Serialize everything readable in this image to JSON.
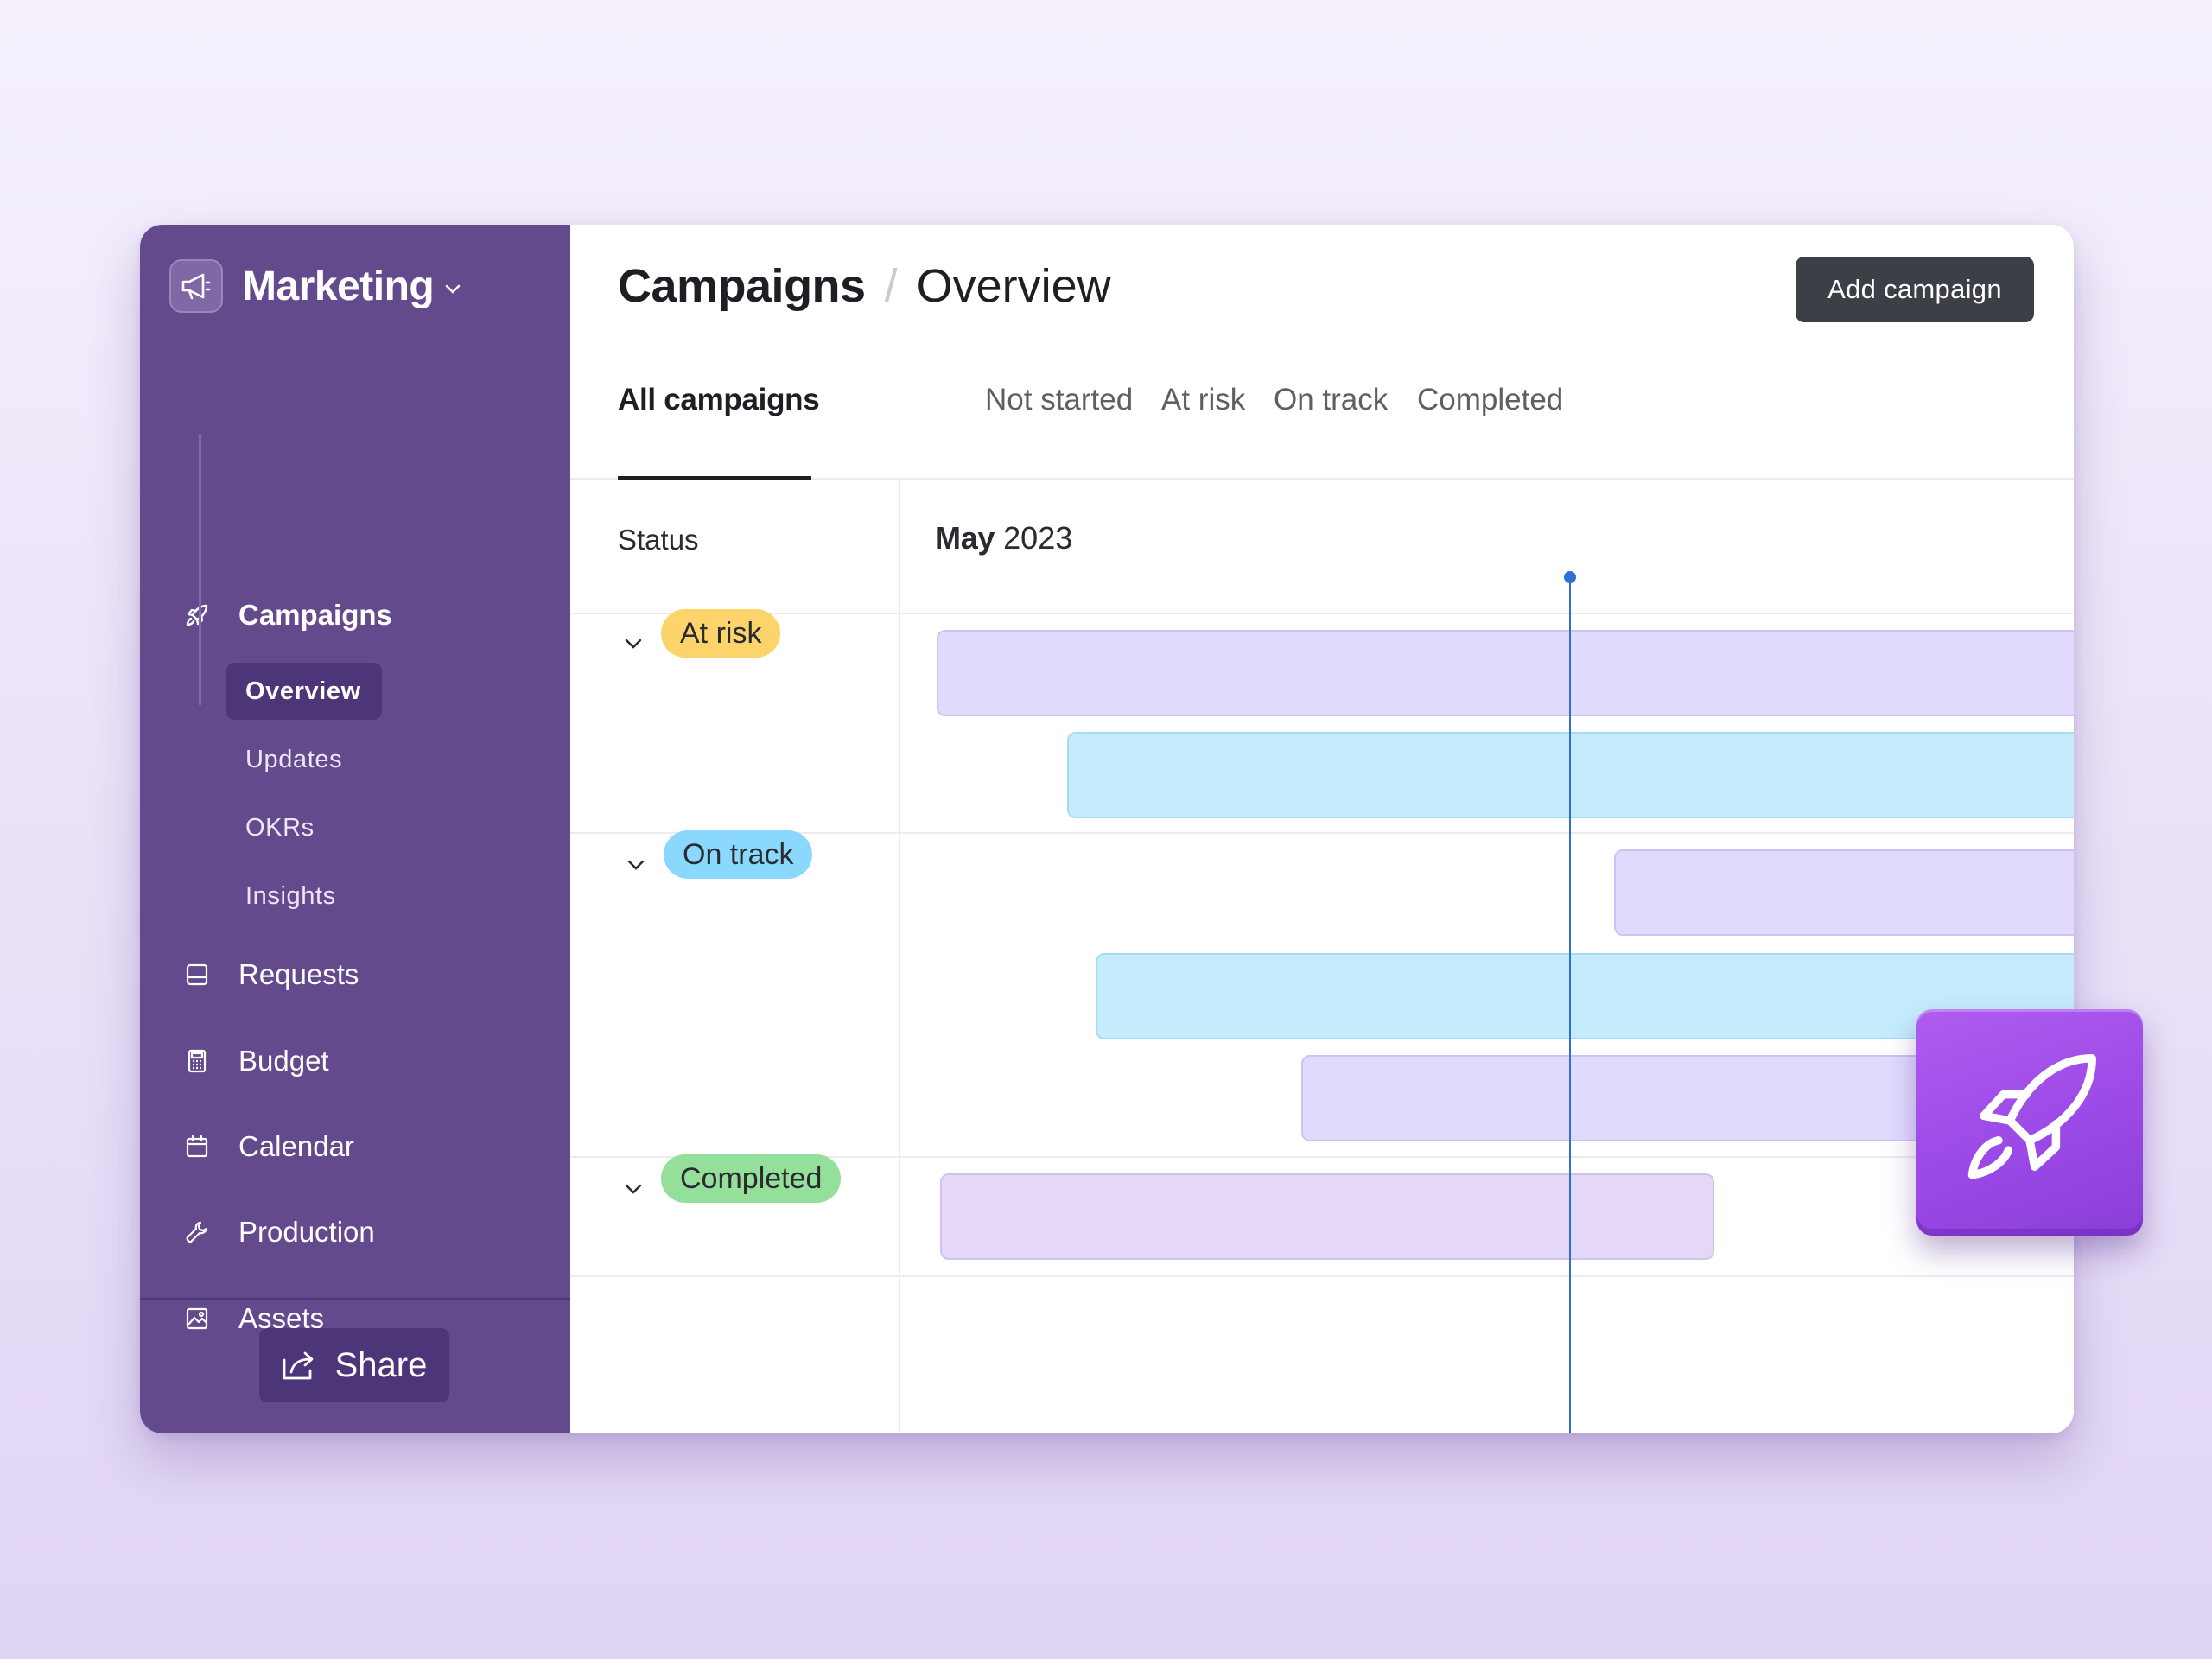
{
  "workspace": {
    "name": "Marketing",
    "icon": "megaphone-icon"
  },
  "sidebar": {
    "nav": [
      {
        "label": "Campaigns",
        "icon": "rocket-icon"
      },
      {
        "label": "Requests",
        "icon": "inbox-icon"
      },
      {
        "label": "Budget",
        "icon": "calculator-icon"
      },
      {
        "label": "Calendar",
        "icon": "calendar-icon"
      },
      {
        "label": "Production",
        "icon": "wrench-icon"
      },
      {
        "label": "Assets",
        "icon": "image-icon"
      }
    ],
    "sub_items": [
      {
        "label": "Overview",
        "active": true
      },
      {
        "label": "Updates"
      },
      {
        "label": "OKRs"
      },
      {
        "label": "Insights"
      }
    ],
    "share_label": "Share"
  },
  "header": {
    "section": "Campaigns",
    "separator": "/",
    "page": "Overview",
    "add_button": "Add campaign"
  },
  "tabs": [
    {
      "label": "All campaigns",
      "active": true
    },
    {
      "label": "Not started"
    },
    {
      "label": "At risk"
    },
    {
      "label": "On track"
    },
    {
      "label": "Completed"
    }
  ],
  "timeline": {
    "status_header": "Status",
    "month": "May",
    "year": "2023",
    "groups": [
      {
        "label": "At risk",
        "color": "#fdd36b"
      },
      {
        "label": "On track",
        "color": "#8ad8fb"
      },
      {
        "label": "Completed",
        "color": "#94e09a"
      }
    ],
    "bar_colors": {
      "purple": "#e2dafd",
      "blue": "#c5ecfd",
      "lilac": "#e5d8f7"
    },
    "today_line_color": "#2f6fd8"
  },
  "colors": {
    "sidebar_bg": "#634a8d",
    "sidebar_active": "#4c3578",
    "add_button_bg": "#3c3f46",
    "rocket_tile": "#a355ee"
  }
}
